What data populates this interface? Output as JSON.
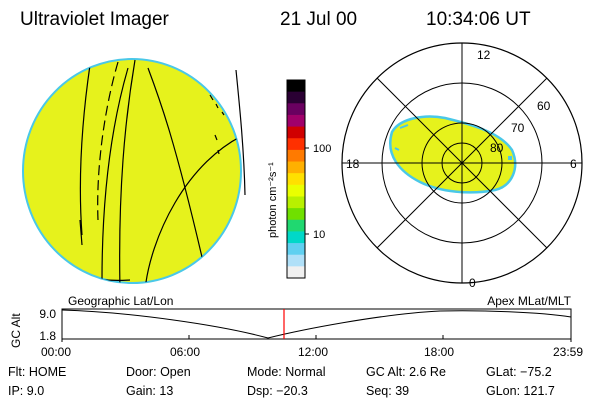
{
  "header": {
    "instrument": "Ultraviolet Imager",
    "date": "21 Jul 00",
    "time": "10:34:06 UT"
  },
  "colorbar": {
    "unit_label": "photon cm⁻²s⁻¹",
    "tick_labels": [
      "100",
      "10"
    ],
    "colors": [
      "#000000",
      "#2a0033",
      "#6a0060",
      "#a0006a",
      "#d00000",
      "#ff3000",
      "#ff7a00",
      "#ffb000",
      "#ffe000",
      "#eaff00",
      "#b8f000",
      "#70e000",
      "#20d870",
      "#00d8c8",
      "#60d0f0",
      "#b0e0f8",
      "#f0f0f0"
    ]
  },
  "polar_plot": {
    "lt_labels": [
      "12",
      "18",
      "6",
      "0"
    ],
    "lat_labels": [
      "60",
      "70",
      "80"
    ]
  },
  "timeline": {
    "left_title": "Geographic Lat/Lon",
    "right_title": "Apex MLat/MLT",
    "axis_title": "GC Alt",
    "y_labels": [
      "9.0",
      "1.8"
    ],
    "time_labels": [
      "00:00",
      "06:00",
      "12:00",
      "18:00",
      "23:59"
    ],
    "marker_color": "#ff0000"
  },
  "status": {
    "row1": [
      {
        "label": "Flt:",
        "value": "HOME"
      },
      {
        "label": "Door:",
        "value": "Open"
      },
      {
        "label": "Mode:",
        "value": "Normal"
      },
      {
        "label": "GC Alt:",
        "value": "2.6 Re"
      },
      {
        "label": "GLat:",
        "value": "−75.2"
      }
    ],
    "row2": [
      {
        "label": "IP:",
        "value": "9.0"
      },
      {
        "label": "Gain:",
        "value": "13"
      },
      {
        "label": "Dsp:",
        "value": "−20.3"
      },
      {
        "label": "Seq:",
        "value": "39"
      },
      {
        "label": "GLon:",
        "value": "121.7"
      }
    ]
  },
  "style": {
    "image_fill": "#e6f21c",
    "image_edge": "#4ac8e8",
    "line_color": "#000000"
  }
}
